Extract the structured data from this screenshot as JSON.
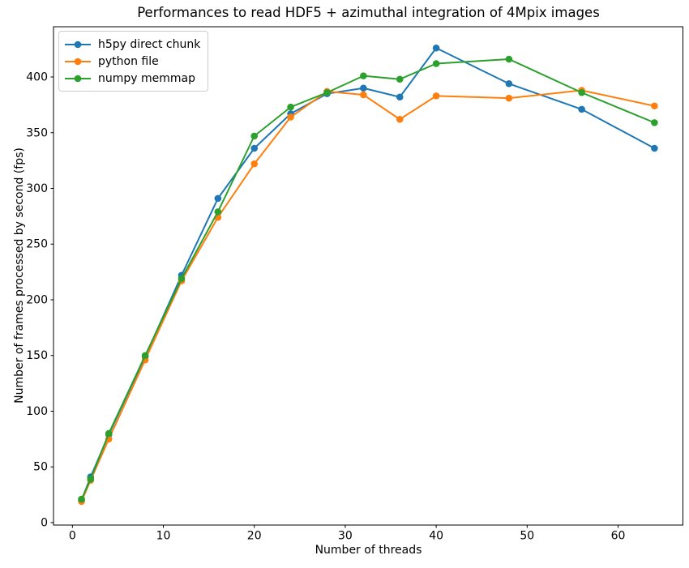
{
  "chart_data": {
    "type": "line",
    "title": "Performances to read HDF5 + azimuthal integration of 4Mpix images",
    "xlabel": "Number of threads",
    "ylabel": "Number of frames processed by second (fps)",
    "x": [
      1,
      2,
      4,
      8,
      12,
      16,
      20,
      24,
      28,
      32,
      36,
      40,
      48,
      56,
      64
    ],
    "series": [
      {
        "name": "h5py direct chunk",
        "color": "#1f77b4",
        "values": [
          20,
          41,
          79,
          149,
          222,
          291,
          336,
          367,
          385,
          390,
          382,
          426,
          394,
          371,
          336
        ]
      },
      {
        "name": "python file",
        "color": "#ff7f0e",
        "values": [
          19,
          38,
          75,
          146,
          217,
          274,
          322,
          364,
          387,
          384,
          362,
          383,
          381,
          388,
          374
        ]
      },
      {
        "name": "numpy memmap",
        "color": "#2ca02c",
        "values": [
          21,
          39,
          80,
          150,
          219,
          279,
          347,
          373,
          386,
          401,
          398,
          412,
          416,
          386,
          359
        ]
      }
    ],
    "xticks": [
      0,
      10,
      20,
      30,
      40,
      50,
      60
    ],
    "yticks": [
      0,
      50,
      100,
      150,
      200,
      250,
      300,
      350,
      400
    ],
    "xlim": [
      -2.08,
      67.13
    ],
    "ylim": [
      -2.2,
      445.1
    ],
    "grid": false,
    "legend_position": "upper left",
    "marker": "o",
    "frame_color": "#000000",
    "background_color": "#ffffff"
  }
}
